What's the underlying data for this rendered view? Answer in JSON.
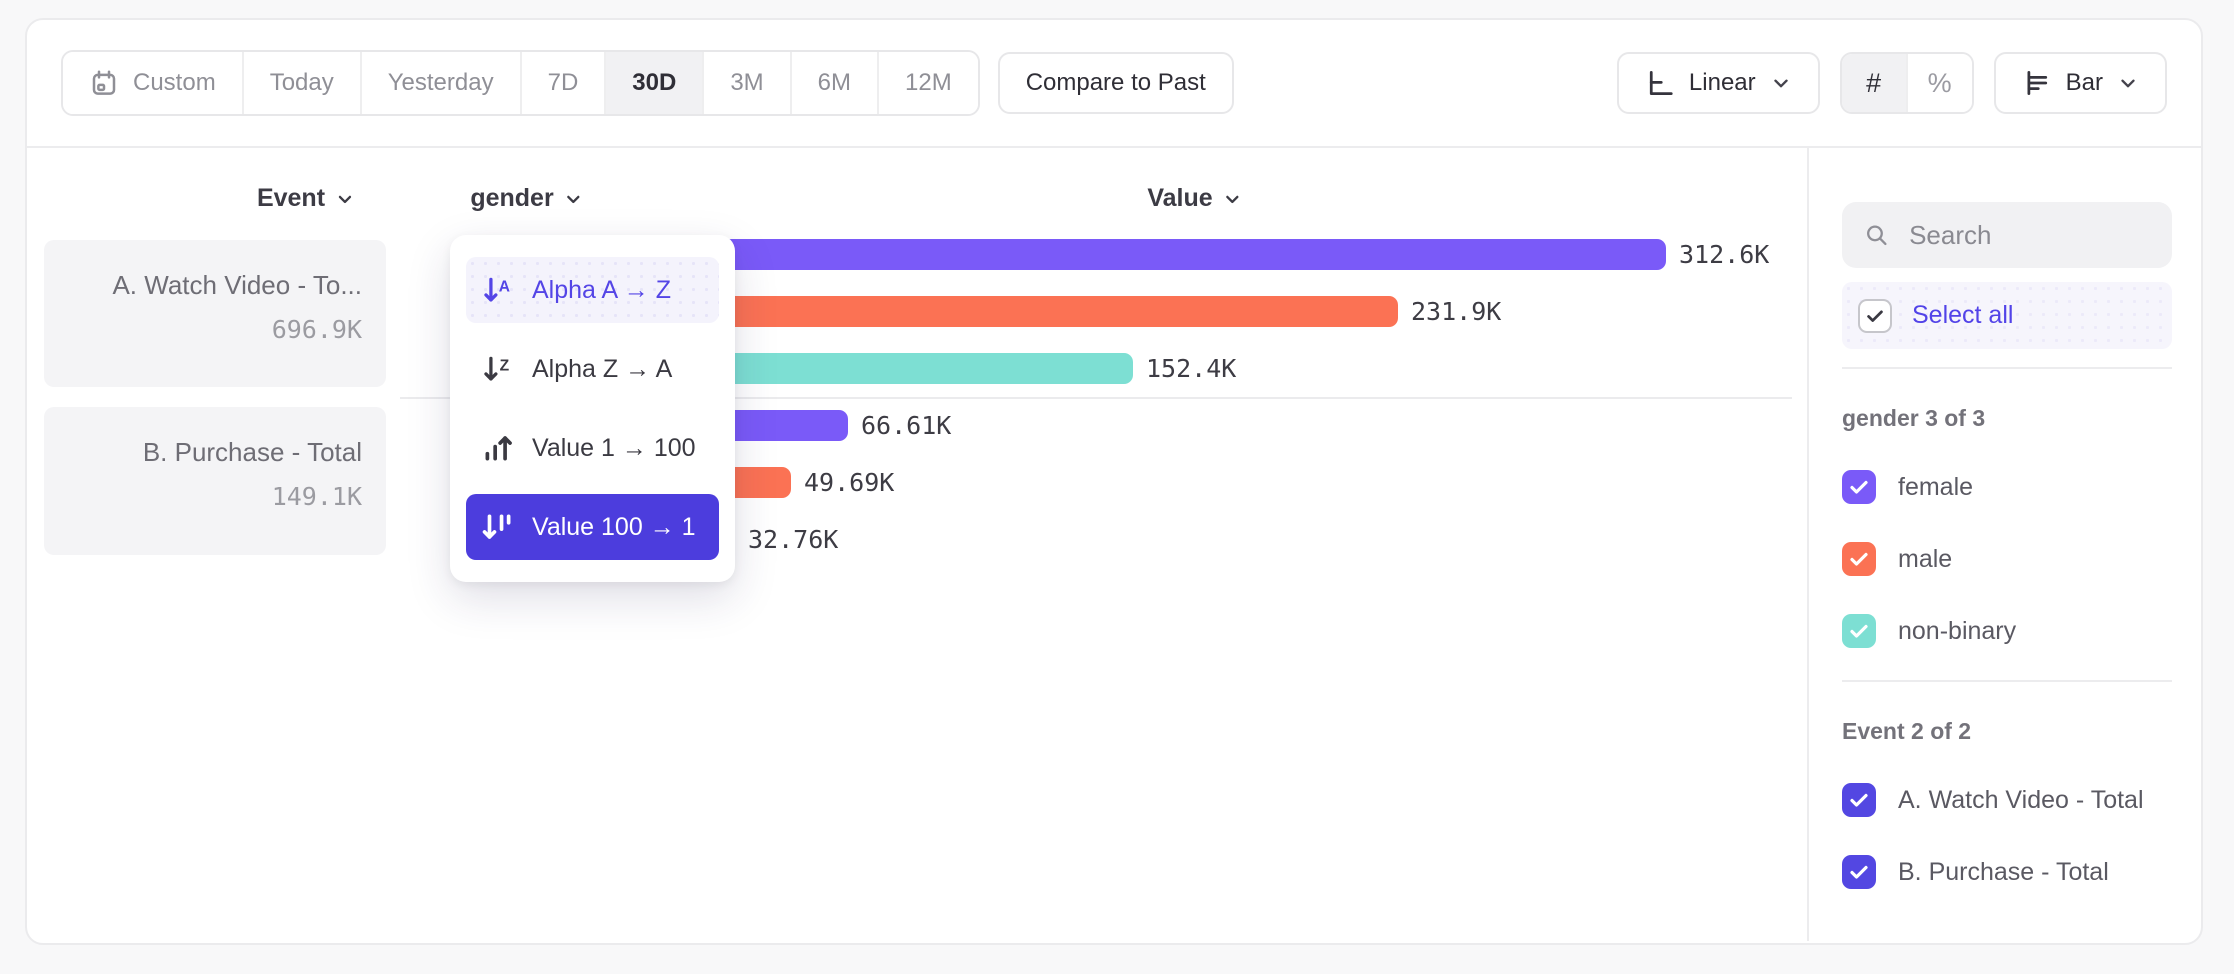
{
  "toolbar": {
    "date_ranges": [
      {
        "label": "Custom",
        "icon": "calendar-icon"
      },
      {
        "label": "Today"
      },
      {
        "label": "Yesterday"
      },
      {
        "label": "7D"
      },
      {
        "label": "30D"
      },
      {
        "label": "3M"
      },
      {
        "label": "6M"
      },
      {
        "label": "12M"
      }
    ],
    "selected_range": "30D",
    "compare_button": "Compare to Past",
    "scale_dropdown": {
      "label": "Linear",
      "icon": "linear-axis-icon"
    },
    "format_toggle": [
      {
        "label": "#",
        "name": "number-format",
        "selected": true
      },
      {
        "label": "%",
        "name": "percent-format",
        "selected": false
      }
    ],
    "chart_type_dropdown": {
      "label": "Bar",
      "icon": "bar-chart-icon"
    }
  },
  "columns": {
    "event": "Event",
    "breakdown": "gender",
    "value": "Value"
  },
  "event_cards": [
    {
      "name": "A. Watch Video - To...",
      "value": "696.9K"
    },
    {
      "name": "B. Purchase - Total",
      "value": "149.1K"
    }
  ],
  "sort_menu": {
    "items": [
      {
        "label": "Alpha A → Z",
        "icon": "sort-alpha-asc-icon",
        "state": "hover"
      },
      {
        "label": "Alpha Z → A",
        "icon": "sort-alpha-desc-icon",
        "state": "default"
      },
      {
        "label": "Value 1 → 100",
        "icon": "sort-value-asc-icon",
        "state": "default"
      },
      {
        "label": "Value 100 → 1",
        "icon": "sort-value-desc-icon",
        "state": "selected"
      }
    ]
  },
  "chart_data": {
    "type": "bar",
    "orientation": "horizontal",
    "value_axis_label": "Value",
    "category_axis": "gender",
    "sort": "Value 100 → 1",
    "x_max": 312600,
    "groups": [
      {
        "event": "A. Watch Video - Total",
        "total_display": "696.9K",
        "bars": [
          {
            "category": "female",
            "value": 312600,
            "display": "312.6K",
            "color": "#7a5af8"
          },
          {
            "category": "male",
            "value": 231900,
            "display": "231.9K",
            "color": "#fb7254"
          },
          {
            "category": "non-binary",
            "value": 152400,
            "display": "152.4K",
            "color": "#7ddfd3"
          }
        ]
      },
      {
        "event": "B. Purchase - Total",
        "total_display": "149.1K",
        "bars": [
          {
            "category": "female",
            "value": 66610,
            "display": "66.61K",
            "color": "#7a5af8"
          },
          {
            "category": "male",
            "value": 49690,
            "display": "49.69K",
            "color": "#fb7254"
          },
          {
            "category": "non-binary",
            "value": 32760,
            "display": "32.76K",
            "color": "#7ddfd3"
          }
        ]
      }
    ]
  },
  "sidebar": {
    "search_placeholder": "Search",
    "select_all_label": "Select all",
    "sections": [
      {
        "title": "gender 3 of 3",
        "items": [
          {
            "label": "female",
            "checked": true,
            "color": "#7a5af8"
          },
          {
            "label": "male",
            "checked": true,
            "color": "#fb7254"
          },
          {
            "label": "non-binary",
            "checked": true,
            "color": "#7ddfd3"
          }
        ]
      },
      {
        "title": "Event 2 of 2",
        "items": [
          {
            "label": "A. Watch Video - Total",
            "checked": true,
            "color": "#5347e2"
          },
          {
            "label": "B. Purchase - Total",
            "checked": true,
            "color": "#5347e2"
          }
        ]
      }
    ]
  },
  "icons": {
    "calendar-icon": "▦",
    "search-icon": "⌕",
    "chevron-down-icon": "⌄",
    "linear-axis-icon": "∟",
    "bar-chart-icon": "☰",
    "number-format-icon": "#",
    "percent-format-icon": "%",
    "sort-alpha-asc-icon": "↓A",
    "sort-alpha-desc-icon": "↓Z",
    "sort-value-asc-icon": "ıl↑",
    "sort-value-desc-icon": "↓lı",
    "checkbox-check-icon": "✓"
  },
  "colors": {
    "accent": "#4c3ddd",
    "link_purple": "#5445e6",
    "bar_female": "#7a5af8",
    "bar_male": "#fb7254",
    "bar_nonbinary": "#7ddfd3",
    "event_checkbox": "#5347e2",
    "selected_segment_bg": "#f1f1f3"
  }
}
